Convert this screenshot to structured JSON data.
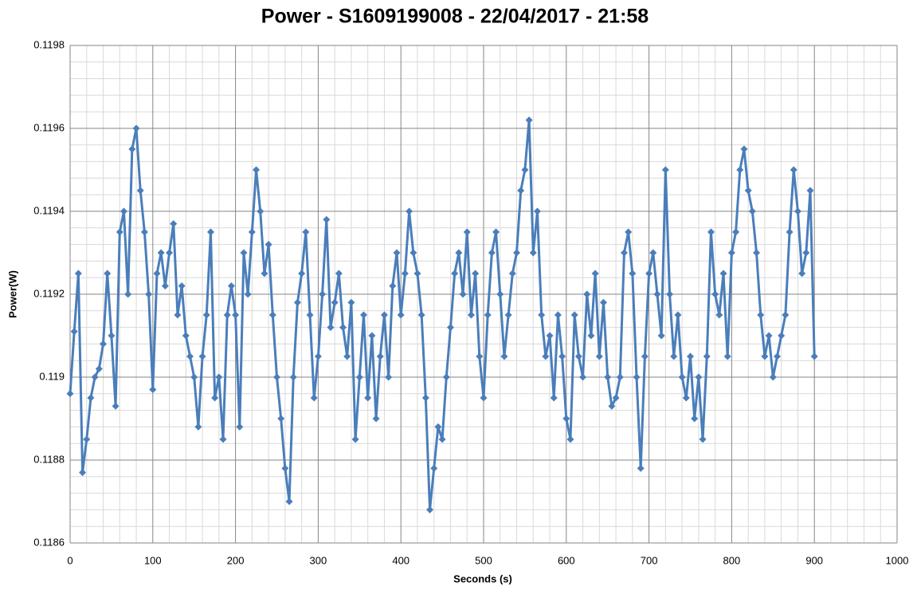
{
  "chart_data": {
    "type": "line",
    "title": "Power - S1609199008 - 22/04/2017 - 21:58",
    "xlabel": "Seconds (s)",
    "ylabel": "Power(W)",
    "xlim": [
      0,
      1000
    ],
    "xticks": [
      0,
      100,
      200,
      300,
      400,
      500,
      600,
      700,
      800,
      900,
      1000
    ],
    "ylim": [
      0.1186,
      0.1198
    ],
    "yticks": [
      0.1186,
      0.1188,
      0.119,
      0.1192,
      0.1194,
      0.1196,
      0.1198
    ],
    "grid": true,
    "marker": "diamond",
    "x": [
      0,
      5,
      10,
      15,
      20,
      25,
      30,
      35,
      40,
      45,
      50,
      55,
      60,
      65,
      70,
      75,
      80,
      85,
      90,
      95,
      100,
      105,
      110,
      115,
      120,
      125,
      130,
      135,
      140,
      145,
      150,
      155,
      160,
      165,
      170,
      175,
      180,
      185,
      190,
      195,
      200,
      205,
      210,
      215,
      220,
      225,
      230,
      235,
      240,
      245,
      250,
      255,
      260,
      265,
      270,
      275,
      280,
      285,
      290,
      295,
      300,
      305,
      310,
      315,
      320,
      325,
      330,
      335,
      340,
      345,
      350,
      355,
      360,
      365,
      370,
      375,
      380,
      385,
      390,
      395,
      400,
      405,
      410,
      415,
      420,
      425,
      430,
      435,
      440,
      445,
      450,
      455,
      460,
      465,
      470,
      475,
      480,
      485,
      490,
      495,
      500,
      505,
      510,
      515,
      520,
      525,
      530,
      535,
      540,
      545,
      550,
      555,
      560,
      565,
      570,
      575,
      580,
      585,
      590,
      595,
      600,
      605,
      610,
      615,
      620,
      625,
      630,
      635,
      640,
      645,
      650,
      655,
      660,
      665,
      670,
      675,
      680,
      685,
      690,
      695,
      700,
      705,
      710,
      715,
      720,
      725,
      730,
      735,
      740,
      745,
      750,
      755,
      760,
      765,
      770,
      775,
      780,
      785,
      790,
      795,
      800,
      805,
      810,
      815,
      820,
      825,
      830,
      835,
      840,
      845,
      850,
      855,
      860,
      865,
      870,
      875,
      880,
      885,
      890,
      895,
      900
    ],
    "series": [
      {
        "name": "Power",
        "color": "#4a7ebb",
        "values": [
          0.11896,
          0.11911,
          0.11925,
          0.11877,
          0.11885,
          0.11895,
          0.119,
          0.11902,
          0.11908,
          0.11925,
          0.1191,
          0.11893,
          0.11935,
          0.1194,
          0.1192,
          0.11955,
          0.1196,
          0.11945,
          0.11935,
          0.1192,
          0.11897,
          0.11925,
          0.1193,
          0.11922,
          0.1193,
          0.11937,
          0.11915,
          0.11922,
          0.1191,
          0.11905,
          0.119,
          0.11888,
          0.11905,
          0.11915,
          0.11935,
          0.11895,
          0.119,
          0.11885,
          0.11915,
          0.11922,
          0.11915,
          0.11888,
          0.1193,
          0.1192,
          0.11935,
          0.1195,
          0.1194,
          0.11925,
          0.11932,
          0.11915,
          0.119,
          0.1189,
          0.11878,
          0.1187,
          0.119,
          0.11918,
          0.11925,
          0.11935,
          0.11915,
          0.11895,
          0.11905,
          0.1192,
          0.11938,
          0.11912,
          0.11918,
          0.11925,
          0.11912,
          0.11905,
          0.11918,
          0.11885,
          0.119,
          0.11915,
          0.11895,
          0.1191,
          0.1189,
          0.11905,
          0.11915,
          0.119,
          0.11922,
          0.1193,
          0.11915,
          0.11925,
          0.1194,
          0.1193,
          0.11925,
          0.11915,
          0.11895,
          0.11868,
          0.11878,
          0.11888,
          0.11885,
          0.119,
          0.11912,
          0.11925,
          0.1193,
          0.1192,
          0.11935,
          0.11915,
          0.11925,
          0.11905,
          0.11895,
          0.11915,
          0.1193,
          0.11935,
          0.1192,
          0.11905,
          0.11915,
          0.11925,
          0.1193,
          0.11945,
          0.1195,
          0.11962,
          0.1193,
          0.1194,
          0.11915,
          0.11905,
          0.1191,
          0.11895,
          0.11915,
          0.11905,
          0.1189,
          0.11885,
          0.11915,
          0.11905,
          0.119,
          0.1192,
          0.1191,
          0.11925,
          0.11905,
          0.11918,
          0.119,
          0.11893,
          0.11895,
          0.119,
          0.1193,
          0.11935,
          0.11925,
          0.119,
          0.11878,
          0.11905,
          0.11925,
          0.1193,
          0.1192,
          0.1191,
          0.1195,
          0.1192,
          0.11905,
          0.11915,
          0.119,
          0.11895,
          0.11905,
          0.1189,
          0.119,
          0.11885,
          0.11905,
          0.11935,
          0.1192,
          0.11915,
          0.11925,
          0.11905,
          0.1193,
          0.11935,
          0.1195,
          0.11955,
          0.11945,
          0.1194,
          0.1193,
          0.11915,
          0.11905,
          0.1191,
          0.119,
          0.11905,
          0.1191,
          0.11915,
          0.11935,
          0.1195,
          0.1194,
          0.11925,
          0.1193,
          0.11945,
          0.11905
        ]
      }
    ]
  }
}
